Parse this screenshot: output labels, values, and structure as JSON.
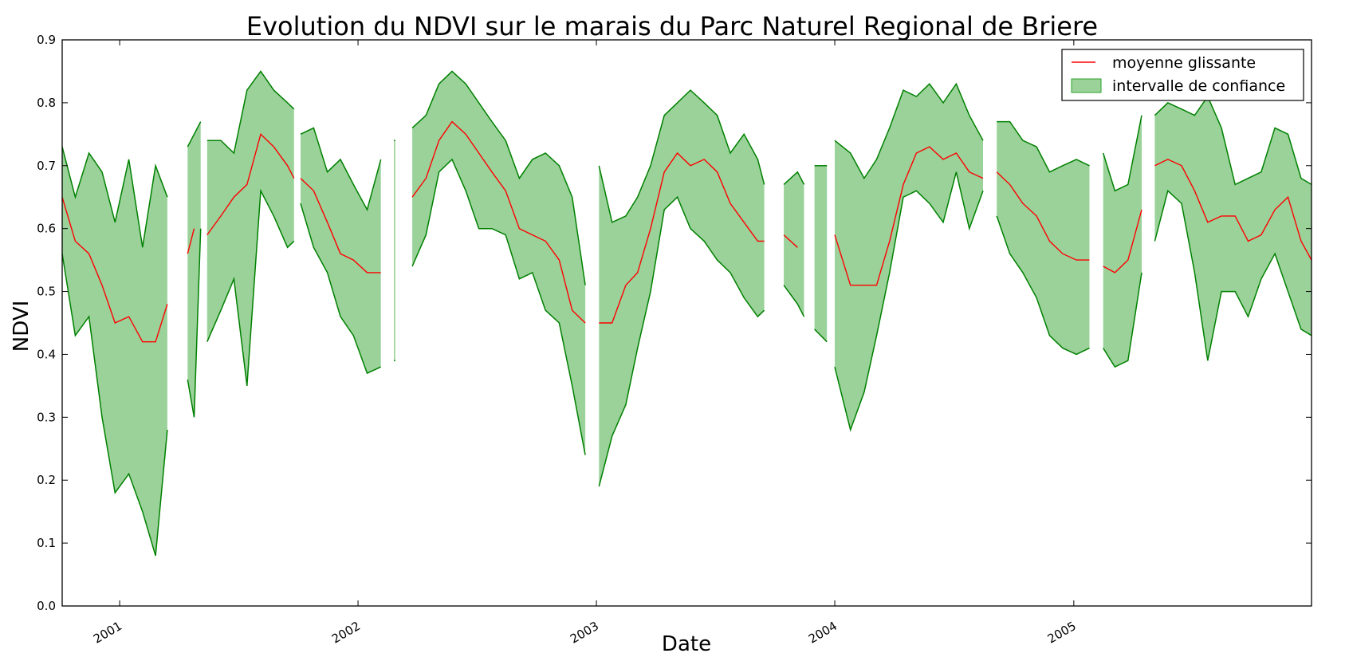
{
  "chart_data": {
    "type": "line",
    "title": "Evolution du NDVI sur le marais du Parc Naturel Regional de Briere",
    "xlabel": "Date",
    "ylabel": "NDVI",
    "xlim": [
      "2000-10-05",
      "2005-12-31"
    ],
    "ylim": [
      0.0,
      0.9
    ],
    "y_ticks": [
      "0.0",
      "0.1",
      "0.2",
      "0.3",
      "0.4",
      "0.5",
      "0.6",
      "0.7",
      "0.8",
      "0.9"
    ],
    "x_ticks": [
      {
        "date": "2001-01-01",
        "label": "2001"
      },
      {
        "date": "2002-01-01",
        "label": "2002"
      },
      {
        "date": "2003-01-01",
        "label": "2003"
      },
      {
        "date": "2004-01-01",
        "label": "2004"
      },
      {
        "date": "2005-01-01",
        "label": "2005"
      }
    ],
    "grid": false,
    "legend": {
      "position": "top-right",
      "entries": [
        {
          "label": "moyenne glissante",
          "kind": "line",
          "color": "#ff0000"
        },
        {
          "label": "intervalle de confiance",
          "kind": "band",
          "color": "#2ca02c"
        }
      ]
    },
    "colors": {
      "mean": "#ff0000",
      "band_fill": "#2ca02c",
      "band_edge": "#008000"
    },
    "segments": [
      {
        "date": [
          "2000-10-05",
          "2000-10-25",
          "2000-11-15",
          "2000-12-05",
          "2000-12-25",
          "2001-01-15",
          "2001-02-05",
          "2001-02-25",
          "2001-03-15"
        ],
        "mean": [
          0.65,
          0.58,
          0.56,
          0.51,
          0.45,
          0.46,
          0.42,
          0.42,
          0.48
        ],
        "upper": [
          0.73,
          0.65,
          0.72,
          0.69,
          0.61,
          0.71,
          0.57,
          0.7,
          0.65
        ],
        "lower": [
          0.56,
          0.43,
          0.46,
          0.3,
          0.18,
          0.21,
          0.15,
          0.08,
          0.28
        ]
      },
      {
        "date": [
          "2001-04-15",
          "2001-04-25",
          "2001-05-05"
        ],
        "mean": [
          0.56,
          0.6,
          null
        ],
        "upper": [
          0.73,
          0.75,
          0.77
        ],
        "lower": [
          0.36,
          0.3,
          0.6
        ]
      },
      {
        "date": [
          "2001-05-15",
          "2001-06-05",
          "2001-06-25",
          "2001-07-15",
          "2001-08-05",
          "2001-08-25",
          "2001-09-15",
          "2001-09-25"
        ],
        "mean": [
          0.59,
          0.62,
          0.65,
          0.67,
          0.75,
          0.73,
          0.7,
          0.68
        ],
        "upper": [
          0.74,
          0.74,
          0.72,
          0.82,
          0.85,
          0.82,
          0.8,
          0.79
        ],
        "lower": [
          0.42,
          0.47,
          0.52,
          0.35,
          0.66,
          0.62,
          0.57,
          0.58
        ]
      },
      {
        "date": [
          "2001-10-05",
          "2001-10-25",
          "2001-11-15",
          "2001-12-05",
          "2001-12-25",
          "2002-01-15",
          "2002-02-05"
        ],
        "mean": [
          0.68,
          0.66,
          0.61,
          0.56,
          0.55,
          0.53,
          0.53
        ],
        "upper": [
          0.75,
          0.76,
          0.69,
          0.71,
          0.67,
          0.63,
          0.71
        ],
        "lower": [
          0.64,
          0.57,
          0.53,
          0.46,
          0.43,
          0.37,
          0.38
        ]
      },
      {
        "date": [
          "2002-02-25",
          "2002-02-27"
        ],
        "mean": [
          null,
          null
        ],
        "upper": [
          0.74,
          0.74
        ],
        "lower": [
          0.39,
          0.39
        ]
      },
      {
        "date": [
          "2002-03-25",
          "2002-04-15",
          "2002-05-05",
          "2002-05-25",
          "2002-06-15",
          "2002-07-05",
          "2002-07-25",
          "2002-08-15",
          "2002-09-05",
          "2002-09-25",
          "2002-10-15",
          "2002-11-05",
          "2002-11-25",
          "2002-12-15"
        ],
        "mean": [
          0.65,
          0.68,
          0.74,
          0.77,
          0.75,
          0.72,
          0.69,
          0.66,
          0.6,
          0.59,
          0.58,
          0.55,
          0.47,
          0.45
        ],
        "upper": [
          0.76,
          0.78,
          0.83,
          0.85,
          0.83,
          0.8,
          0.77,
          0.74,
          0.68,
          0.71,
          0.72,
          0.7,
          0.65,
          0.51
        ],
        "lower": [
          0.54,
          0.59,
          0.69,
          0.71,
          0.66,
          0.6,
          0.6,
          0.59,
          0.52,
          0.53,
          0.47,
          0.45,
          0.35,
          0.24
        ]
      },
      {
        "date": [
          "2003-01-05",
          "2003-01-25",
          "2003-02-15",
          "2003-03-05",
          "2003-03-25",
          "2003-04-15",
          "2003-05-05",
          "2003-05-25",
          "2003-06-15",
          "2003-07-05",
          "2003-07-25",
          "2003-08-15",
          "2003-09-05",
          "2003-09-15"
        ],
        "mean": [
          0.45,
          0.45,
          0.51,
          0.53,
          0.6,
          0.69,
          0.72,
          0.7,
          0.71,
          0.69,
          0.64,
          0.61,
          0.58,
          0.58
        ],
        "upper": [
          0.7,
          0.61,
          0.62,
          0.65,
          0.7,
          0.78,
          0.8,
          0.82,
          0.8,
          0.78,
          0.72,
          0.75,
          0.71,
          0.67
        ],
        "lower": [
          0.19,
          0.27,
          0.32,
          0.41,
          0.5,
          0.63,
          0.65,
          0.6,
          0.58,
          0.55,
          0.53,
          0.49,
          0.46,
          0.47
        ]
      },
      {
        "date": [
          "2003-10-15",
          "2003-11-05",
          "2003-11-15"
        ],
        "mean": [
          0.59,
          0.57,
          null
        ],
        "upper": [
          0.67,
          0.69,
          0.67
        ],
        "lower": [
          0.51,
          0.48,
          0.46
        ]
      },
      {
        "date": [
          "2003-12-01",
          "2003-12-20"
        ],
        "mean": [
          null,
          null
        ],
        "upper": [
          0.7,
          0.7
        ],
        "lower": [
          0.44,
          0.42
        ]
      },
      {
        "date": [
          "2004-01-01",
          "2004-01-25",
          "2004-02-15",
          "2004-03-05",
          "2004-03-25",
          "2004-04-15",
          "2004-05-05",
          "2004-05-25",
          "2004-06-15",
          "2004-07-05",
          "2004-07-25",
          "2004-08-15"
        ],
        "mean": [
          0.59,
          0.51,
          0.51,
          0.51,
          0.58,
          0.67,
          0.72,
          0.73,
          0.71,
          0.72,
          0.69,
          0.68
        ],
        "upper": [
          0.74,
          0.72,
          0.68,
          0.71,
          0.76,
          0.82,
          0.81,
          0.83,
          0.8,
          0.83,
          0.78,
          0.74
        ],
        "lower": [
          0.38,
          0.28,
          0.34,
          0.43,
          0.53,
          0.65,
          0.66,
          0.64,
          0.61,
          0.69,
          0.6,
          0.66
        ]
      },
      {
        "date": [
          "2004-09-05",
          "2004-09-25",
          "2004-10-15",
          "2004-11-05",
          "2004-11-25",
          "2004-12-15",
          "2005-01-05",
          "2005-01-25"
        ],
        "mean": [
          0.69,
          0.67,
          0.64,
          0.62,
          0.58,
          0.56,
          0.55,
          0.55
        ],
        "upper": [
          0.77,
          0.77,
          0.74,
          0.73,
          0.69,
          0.7,
          0.71,
          0.7
        ],
        "lower": [
          0.62,
          0.56,
          0.53,
          0.49,
          0.43,
          0.41,
          0.4,
          0.41
        ]
      },
      {
        "date": [
          "2005-02-15",
          "2005-03-05",
          "2005-03-25",
          "2005-04-15"
        ],
        "mean": [
          0.54,
          0.53,
          0.55,
          0.63
        ],
        "upper": [
          0.72,
          0.66,
          0.67,
          0.78
        ],
        "lower": [
          0.41,
          0.38,
          0.39,
          0.53
        ]
      },
      {
        "date": [
          "2005-05-05",
          "2005-05-25",
          "2005-06-15",
          "2005-07-05",
          "2005-07-25",
          "2005-08-15",
          "2005-09-05",
          "2005-09-25",
          "2005-10-15",
          "2005-11-05",
          "2005-11-25",
          "2005-12-15",
          "2005-12-31"
        ],
        "mean": [
          0.7,
          0.71,
          0.7,
          0.66,
          0.61,
          0.62,
          0.62,
          0.58,
          0.59,
          0.63,
          0.65,
          0.58,
          0.55
        ],
        "upper": [
          0.78,
          0.8,
          0.79,
          0.78,
          0.81,
          0.76,
          0.67,
          0.68,
          0.69,
          0.76,
          0.75,
          0.68,
          0.67
        ],
        "lower": [
          0.58,
          0.66,
          0.64,
          0.53,
          0.39,
          0.5,
          0.5,
          0.46,
          0.52,
          0.56,
          0.5,
          0.44,
          0.43
        ]
      }
    ]
  }
}
